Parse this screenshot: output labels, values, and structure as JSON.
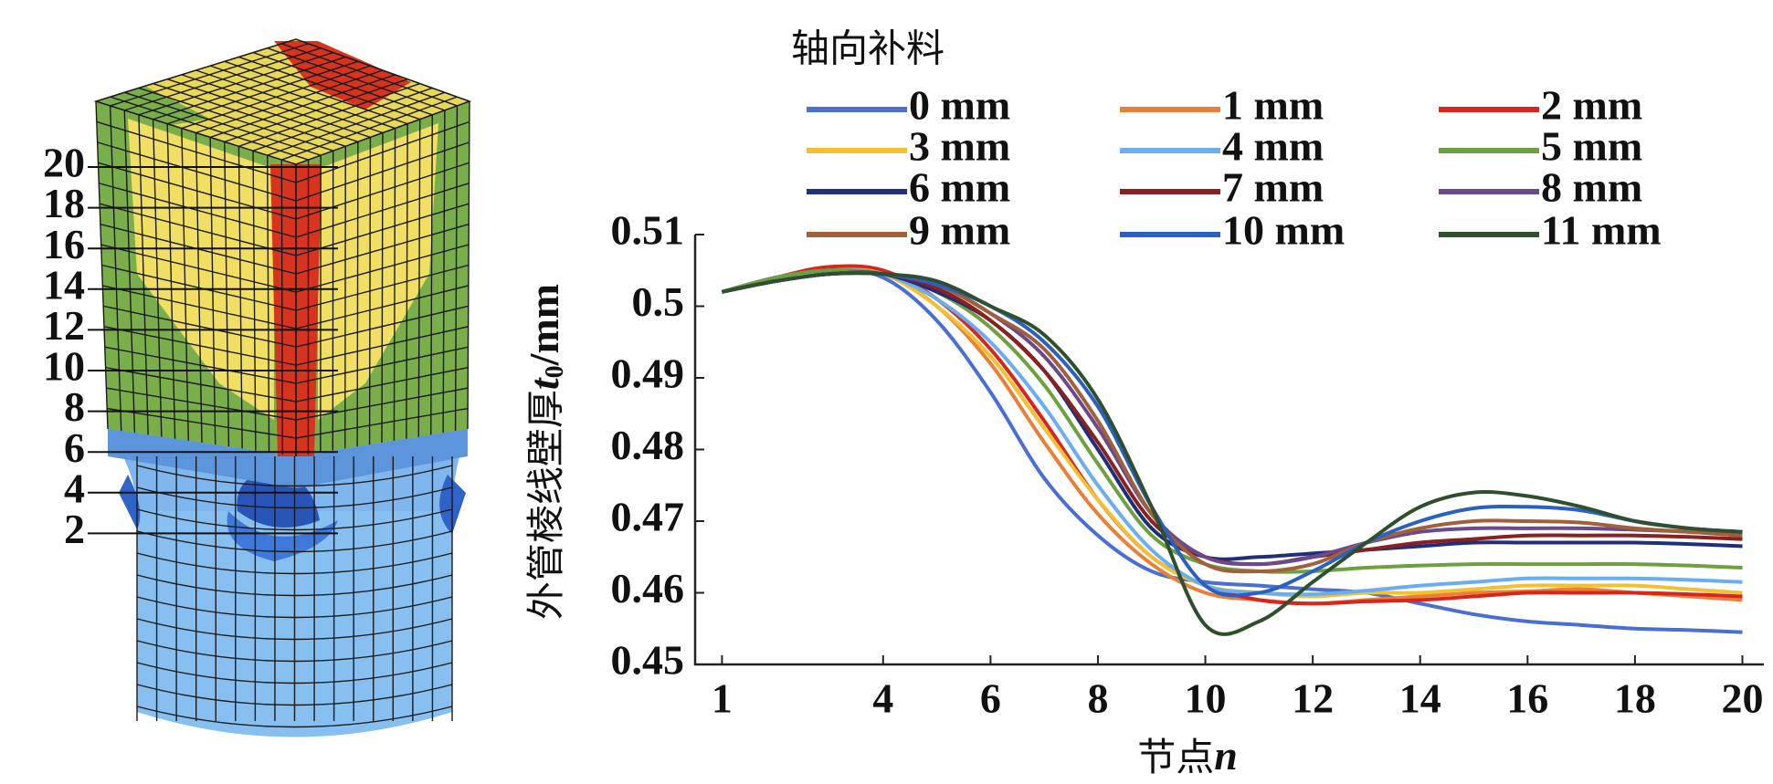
{
  "model": {
    "node_labels": [
      "20",
      "18",
      "16",
      "14",
      "12",
      "10",
      "8",
      "6",
      "4",
      "2"
    ]
  },
  "chart_data": {
    "type": "line",
    "legend_title": "轴向补料",
    "ylabel_parts": [
      "外管棱线壁厚",
      "t",
      "0",
      "/mm"
    ],
    "xlabel_parts": [
      "节点",
      "n"
    ],
    "x": [
      1,
      2,
      3,
      4,
      5,
      6,
      7,
      8,
      9,
      10,
      11,
      12,
      13,
      14,
      15,
      16,
      17,
      18,
      19,
      20
    ],
    "xlim": [
      0.5,
      20.4
    ],
    "xticks": [
      1,
      4,
      6,
      8,
      10,
      12,
      14,
      16,
      18,
      20
    ],
    "ylim": [
      0.45,
      0.51
    ],
    "yticks": [
      0.45,
      0.46,
      0.47,
      0.48,
      0.49,
      0.5,
      0.51
    ],
    "series": [
      {
        "name": "0 mm",
        "color": "#4a6fd0",
        "values": [
          0.502,
          0.504,
          0.505,
          0.504,
          0.498,
          0.488,
          0.476,
          0.468,
          0.463,
          0.4615,
          0.461,
          0.4605,
          0.46,
          0.4585,
          0.457,
          0.456,
          0.4555,
          0.455,
          0.4548,
          0.4545
        ]
      },
      {
        "name": "1 mm",
        "color": "#e8803a",
        "values": [
          0.502,
          0.504,
          0.505,
          0.5045,
          0.5,
          0.492,
          0.481,
          0.471,
          0.464,
          0.46,
          0.459,
          0.4585,
          0.459,
          0.4595,
          0.46,
          0.4602,
          0.4605,
          0.46,
          0.4595,
          0.459
        ]
      },
      {
        "name": "2 mm",
        "color": "#d8261f",
        "values": [
          0.502,
          0.504,
          0.5055,
          0.505,
          0.501,
          0.494,
          0.484,
          0.473,
          0.465,
          0.461,
          0.459,
          0.4585,
          0.4588,
          0.459,
          0.4595,
          0.46,
          0.46,
          0.46,
          0.4598,
          0.4595
        ]
      },
      {
        "name": "3 mm",
        "color": "#f2c030",
        "values": [
          0.502,
          0.504,
          0.505,
          0.5045,
          0.5,
          0.493,
          0.483,
          0.473,
          0.465,
          0.461,
          0.46,
          0.4595,
          0.46,
          0.46,
          0.4605,
          0.461,
          0.461,
          0.461,
          0.4605,
          0.46
        ]
      },
      {
        "name": "4 mm",
        "color": "#6aaef0",
        "values": [
          0.502,
          0.504,
          0.505,
          0.5045,
          0.501,
          0.495,
          0.486,
          0.475,
          0.466,
          0.461,
          0.46,
          0.4598,
          0.4603,
          0.461,
          0.4615,
          0.462,
          0.462,
          0.462,
          0.4618,
          0.4615
        ]
      },
      {
        "name": "5 mm",
        "color": "#6ea040",
        "values": [
          0.502,
          0.504,
          0.505,
          0.5045,
          0.502,
          0.497,
          0.489,
          0.478,
          0.468,
          0.464,
          0.463,
          0.463,
          0.4635,
          0.4638,
          0.464,
          0.464,
          0.464,
          0.464,
          0.4638,
          0.4635
        ]
      },
      {
        "name": "6 mm",
        "color": "#1f2f7a",
        "values": [
          0.502,
          0.5035,
          0.5045,
          0.5045,
          0.502,
          0.498,
          0.491,
          0.48,
          0.469,
          0.465,
          0.465,
          0.4655,
          0.466,
          0.4665,
          0.467,
          0.467,
          0.467,
          0.467,
          0.4668,
          0.4665
        ]
      },
      {
        "name": "7 mm",
        "color": "#8a2020",
        "values": [
          0.502,
          0.5035,
          0.5045,
          0.5045,
          0.5025,
          0.498,
          0.491,
          0.481,
          0.47,
          0.465,
          0.464,
          0.465,
          0.466,
          0.467,
          0.4675,
          0.468,
          0.468,
          0.468,
          0.4678,
          0.4675
        ]
      },
      {
        "name": "8 mm",
        "color": "#6a4a8a",
        "values": [
          0.502,
          0.5035,
          0.5045,
          0.5045,
          0.503,
          0.499,
          0.493,
          0.483,
          0.471,
          0.465,
          0.464,
          0.465,
          0.467,
          0.4685,
          0.469,
          0.469,
          0.469,
          0.4688,
          0.4685,
          0.468
        ]
      },
      {
        "name": "9 mm",
        "color": "#a0603a",
        "values": [
          0.502,
          0.5035,
          0.5045,
          0.5045,
          0.503,
          0.499,
          0.494,
          0.484,
          0.471,
          0.464,
          0.463,
          0.464,
          0.467,
          0.469,
          0.47,
          0.47,
          0.4698,
          0.469,
          0.4685,
          0.468
        ]
      },
      {
        "name": "10 mm",
        "color": "#2a60c0",
        "values": [
          0.502,
          0.5035,
          0.5045,
          0.5045,
          0.503,
          0.5,
          0.495,
          0.486,
          0.472,
          0.461,
          0.46,
          0.463,
          0.467,
          0.47,
          0.4718,
          0.472,
          0.4715,
          0.47,
          0.469,
          0.4685
        ]
      },
      {
        "name": "11 mm",
        "color": "#2f4f2f",
        "values": [
          0.502,
          0.5035,
          0.5045,
          0.5045,
          0.5035,
          0.5,
          0.496,
          0.487,
          0.472,
          0.4555,
          0.456,
          0.4615,
          0.467,
          0.472,
          0.474,
          0.4735,
          0.472,
          0.47,
          0.469,
          0.4685
        ]
      }
    ]
  }
}
